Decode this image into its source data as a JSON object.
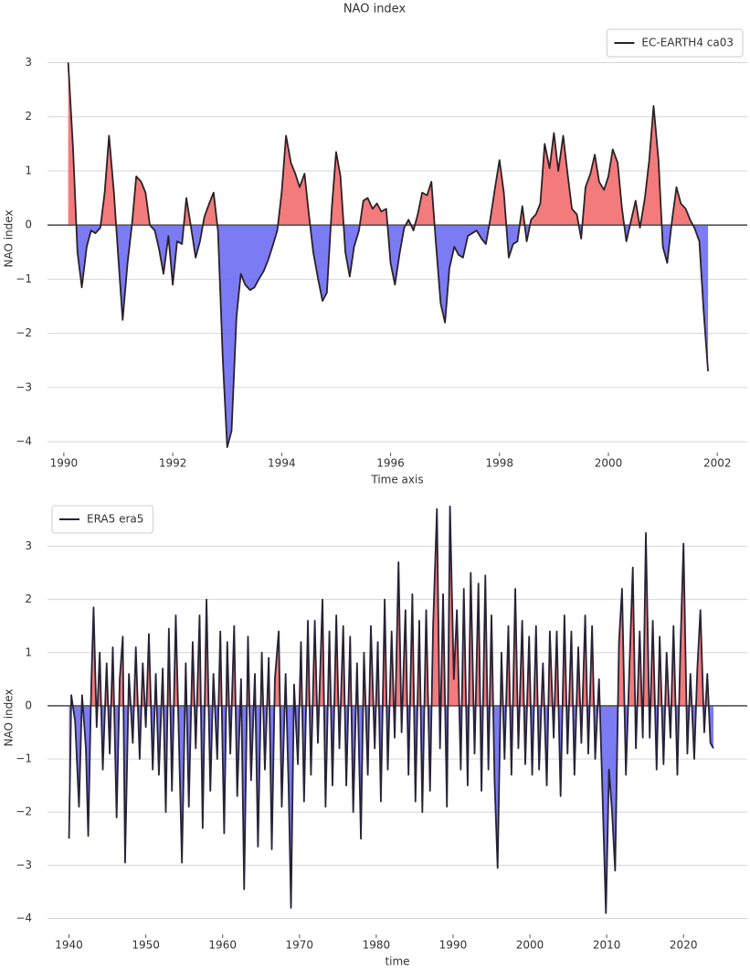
{
  "chart_data": [
    {
      "type": "line",
      "title": "NAO index",
      "xlabel": "Time axis",
      "ylabel": "NAO index",
      "legend": "upper right",
      "grid": true,
      "fill_above_color": "#f26464",
      "fill_below_color": "#6464f2",
      "xlim": [
        1989.7,
        2002.55
      ],
      "ylim": [
        -4.2,
        3.7
      ],
      "xticks": [
        1990,
        1992,
        1994,
        1996,
        1998,
        2000,
        2002
      ],
      "yticks": [
        {
          "value": -4,
          "label": "−4"
        },
        {
          "value": -3,
          "label": "−3"
        },
        {
          "value": -2,
          "label": "−2"
        },
        {
          "value": -1,
          "label": "−1"
        },
        0,
        1,
        2,
        3
      ],
      "x": [
        1990.08,
        1990.17,
        1990.25,
        1990.33,
        1990.42,
        1990.5,
        1990.58,
        1990.67,
        1990.75,
        1990.83,
        1990.92,
        1991,
        1991.08,
        1991.17,
        1991.25,
        1991.33,
        1991.42,
        1991.5,
        1991.58,
        1991.67,
        1991.75,
        1991.83,
        1991.92,
        1992,
        1992.08,
        1992.17,
        1992.25,
        1992.33,
        1992.42,
        1992.5,
        1992.58,
        1992.67,
        1992.75,
        1992.83,
        1992.92,
        1993,
        1993.08,
        1993.17,
        1993.25,
        1993.33,
        1993.42,
        1993.5,
        1993.58,
        1993.67,
        1993.75,
        1993.83,
        1993.92,
        1994,
        1994.08,
        1994.17,
        1994.25,
        1994.33,
        1994.42,
        1994.5,
        1994.58,
        1994.67,
        1994.75,
        1994.83,
        1994.92,
        1995,
        1995.08,
        1995.17,
        1995.25,
        1995.33,
        1995.42,
        1995.5,
        1995.58,
        1995.67,
        1995.75,
        1995.83,
        1995.92,
        1996,
        1996.08,
        1996.17,
        1996.25,
        1996.33,
        1996.42,
        1996.5,
        1996.58,
        1996.67,
        1996.75,
        1996.83,
        1996.92,
        1997,
        1997.08,
        1997.17,
        1997.25,
        1997.33,
        1997.42,
        1997.5,
        1997.58,
        1997.67,
        1997.75,
        1997.83,
        1997.92,
        1998,
        1998.08,
        1998.17,
        1998.25,
        1998.33,
        1998.42,
        1998.5,
        1998.58,
        1998.67,
        1998.75,
        1998.83,
        1998.92,
        1999,
        1999.08,
        1999.17,
        1999.25,
        1999.33,
        1999.42,
        1999.5,
        1999.58,
        1999.67,
        1999.75,
        1999.83,
        1999.92,
        2000,
        2000.08,
        2000.17,
        2000.25,
        2000.33,
        2000.42,
        2000.5,
        2000.58,
        2000.67,
        2000.75,
        2000.83,
        2000.92,
        2001,
        2001.08,
        2001.17,
        2001.25,
        2001.33,
        2001.42,
        2001.5,
        2001.58,
        2001.67,
        2001.75,
        2001.83
      ],
      "series": [
        {
          "name": "EC-EARTH4 ca03",
          "color": "#2b2126",
          "values": [
            3.0,
            1.4,
            -0.5,
            -1.15,
            -0.4,
            -0.1,
            -0.15,
            -0.05,
            0.6,
            1.65,
            0.6,
            -0.6,
            -1.75,
            -0.7,
            0.0,
            0.9,
            0.8,
            0.6,
            0.0,
            -0.1,
            -0.45,
            -0.9,
            -0.2,
            -1.1,
            -0.3,
            -0.35,
            0.5,
            0.0,
            -0.6,
            -0.3,
            0.15,
            0.4,
            0.6,
            -0.1,
            -2.5,
            -4.1,
            -3.8,
            -1.7,
            -0.9,
            -1.1,
            -1.2,
            -1.15,
            -1.0,
            -0.85,
            -0.65,
            -0.4,
            -0.1,
            0.6,
            1.65,
            1.15,
            0.95,
            0.7,
            0.95,
            0.2,
            -0.5,
            -1.0,
            -1.4,
            -1.25,
            0.3,
            1.35,
            0.9,
            -0.5,
            -0.95,
            -0.4,
            -0.1,
            0.45,
            0.5,
            0.3,
            0.4,
            0.25,
            0.3,
            -0.7,
            -1.1,
            -0.5,
            -0.05,
            0.1,
            -0.1,
            0.2,
            0.6,
            0.55,
            0.8,
            -0.3,
            -1.45,
            -1.8,
            -0.8,
            -0.4,
            -0.55,
            -0.6,
            -0.2,
            -0.15,
            -0.1,
            -0.25,
            -0.35,
            0.1,
            0.7,
            1.2,
            0.6,
            -0.6,
            -0.35,
            -0.3,
            0.35,
            -0.3,
            0.1,
            0.2,
            0.4,
            1.5,
            1.05,
            1.7,
            1.0,
            1.65,
            0.95,
            0.3,
            0.2,
            -0.25,
            0.7,
            0.95,
            1.3,
            0.8,
            0.65,
            0.9,
            1.4,
            1.15,
            0.3,
            -0.3,
            0.1,
            0.45,
            -0.05,
            0.5,
            1.2,
            2.2,
            1.2,
            -0.4,
            -0.7,
            0.1,
            0.7,
            0.4,
            0.3,
            0.1,
            -0.05,
            -0.3,
            -1.6,
            -2.7
          ]
        }
      ]
    },
    {
      "type": "line",
      "xlabel": "time",
      "ylabel": "NAO index",
      "legend": "upper left",
      "grid": true,
      "fill_above_color": "#f26464",
      "fill_below_color": "#6464f2",
      "xlim": [
        1937.2,
        2028.3
      ],
      "ylim": [
        -4.3,
        3.85
      ],
      "xticks": [
        1940,
        1950,
        1960,
        1970,
        1980,
        1990,
        2000,
        2010,
        2020
      ],
      "yticks": [
        {
          "value": -4,
          "label": "−4"
        },
        {
          "value": -3,
          "label": "−3"
        },
        {
          "value": -2,
          "label": "−2"
        },
        {
          "value": -1,
          "label": "−1"
        },
        0,
        1,
        2,
        3
      ],
      "x": [
        1940.0,
        1940.3,
        1940.8,
        1941.3,
        1941.7,
        1942.2,
        1942.5,
        1942.9,
        1943.2,
        1943.6,
        1944.0,
        1944.4,
        1944.9,
        1945.3,
        1945.7,
        1946.2,
        1946.6,
        1947.0,
        1947.3,
        1947.8,
        1948.3,
        1948.7,
        1949.2,
        1949.6,
        1950.0,
        1950.4,
        1950.9,
        1951.3,
        1951.7,
        1952.2,
        1952.6,
        1953.0,
        1953.4,
        1953.9,
        1954.3,
        1954.7,
        1955.2,
        1955.6,
        1956.1,
        1956.5,
        1957.0,
        1957.4,
        1957.9,
        1958.4,
        1958.8,
        1959.3,
        1959.7,
        1960.2,
        1960.6,
        1961.0,
        1961.5,
        1961.9,
        1962.4,
        1962.8,
        1963.3,
        1963.7,
        1964.2,
        1964.6,
        1965.1,
        1965.5,
        1966.0,
        1966.4,
        1966.8,
        1967.3,
        1967.7,
        1968.2,
        1968.6,
        1968.9,
        1969.3,
        1969.8,
        1970.2,
        1970.6,
        1971.1,
        1971.5,
        1972.0,
        1972.4,
        1973.0,
        1973.4,
        1973.9,
        1974.3,
        1974.8,
        1975.2,
        1975.7,
        1976.1,
        1976.6,
        1977.0,
        1977.5,
        1978.0,
        1978.4,
        1978.9,
        1979.3,
        1979.8,
        1980.2,
        1980.6,
        1981.1,
        1981.5,
        1982.0,
        1982.4,
        1982.9,
        1983.3,
        1983.8,
        1984.2,
        1984.7,
        1985.1,
        1985.6,
        1986.0,
        1986.5,
        1987.0,
        1987.4,
        1987.9,
        1988.3,
        1988.7,
        1989.2,
        1989.6,
        1990.1,
        1990.5,
        1991.0,
        1991.4,
        1991.9,
        1992.3,
        1992.8,
        1993.3,
        1993.7,
        1994.2,
        1994.6,
        1995.0,
        1995.4,
        1995.8,
        1996.3,
        1996.7,
        1997.2,
        1997.6,
        1998.1,
        1998.5,
        1999.0,
        1999.4,
        1999.9,
        2000.3,
        2000.8,
        2001.2,
        2001.7,
        2002.2,
        2002.6,
        2003.1,
        2003.5,
        2004.0,
        2004.5,
        2004.9,
        2005.4,
        2005.8,
        2006.3,
        2006.7,
        2007.2,
        2007.6,
        2008.1,
        2008.5,
        2009.0,
        2009.4,
        2009.9,
        2010.3,
        2010.7,
        2011.1,
        2011.6,
        2012.0,
        2012.5,
        2013.0,
        2013.4,
        2013.8,
        2014.3,
        2014.7,
        2015.1,
        2015.6,
        2016.0,
        2016.5,
        2016.9,
        2017.4,
        2017.8,
        2018.3,
        2018.7,
        2019.2,
        2019.6,
        2020.0,
        2020.5,
        2020.9,
        2021.4,
        2021.8,
        2022.2,
        2022.7,
        2023.1,
        2023.5,
        2023.9
      ],
      "series": [
        {
          "name": "ERA5 era5",
          "color": "#272236",
          "values": [
            -2.5,
            0.2,
            -0.3,
            -1.9,
            0.2,
            -0.8,
            -2.45,
            0.4,
            1.85,
            -0.4,
            1.0,
            -1.2,
            0.8,
            -0.9,
            1.1,
            -2.1,
            0.5,
            1.3,
            -2.95,
            0.6,
            -0.7,
            1.1,
            -1.0,
            0.8,
            -0.4,
            1.35,
            -1.2,
            0.6,
            -1.3,
            0.7,
            -2.0,
            1.45,
            -1.6,
            1.7,
            -0.6,
            -2.95,
            0.8,
            -1.9,
            1.2,
            -0.8,
            1.7,
            -2.3,
            2.0,
            -1.6,
            0.6,
            -1.0,
            1.4,
            -2.4,
            1.2,
            -0.9,
            1.5,
            -1.7,
            0.5,
            -3.45,
            1.3,
            -1.4,
            0.6,
            -2.65,
            1.0,
            -1.2,
            0.9,
            -2.7,
            0.5,
            1.4,
            -1.9,
            0.6,
            -1.6,
            -3.8,
            0.4,
            -1.1,
            1.2,
            -1.8,
            1.6,
            -1.3,
            1.6,
            -0.7,
            2.0,
            -1.9,
            1.4,
            -1.5,
            1.7,
            -0.8,
            1.5,
            -1.5,
            1.3,
            -2.0,
            0.8,
            -2.5,
            1.0,
            -1.3,
            1.5,
            -0.8,
            1.2,
            -1.8,
            2.0,
            -1.2,
            1.4,
            -0.6,
            2.7,
            -0.5,
            1.8,
            -1.3,
            2.1,
            -1.8,
            1.6,
            -2.0,
            1.8,
            -1.6,
            1.5,
            3.7,
            -0.8,
            2.1,
            -1.9,
            3.75,
            0.5,
            1.8,
            -1.2,
            2.2,
            -1.5,
            2.5,
            -0.9,
            2.3,
            -1.6,
            2.45,
            -1.2,
            1.7,
            -1.4,
            -3.05,
            1.0,
            -1.0,
            1.5,
            -1.3,
            2.2,
            -0.8,
            1.6,
            -1.1,
            1.3,
            -1.3,
            1.5,
            -1.2,
            0.8,
            -1.5,
            1.4,
            -0.6,
            1.4,
            -1.7,
            1.7,
            -0.9,
            1.4,
            -1.3,
            1.1,
            -0.7,
            1.7,
            -0.9,
            1.5,
            -1.0,
            0.5,
            -1.4,
            -3.9,
            -1.2,
            -2.0,
            -3.1,
            1.2,
            2.2,
            -1.3,
            0.9,
            2.6,
            -0.8,
            1.4,
            -0.6,
            3.25,
            -0.6,
            1.6,
            -1.2,
            1.3,
            -1.1,
            1.0,
            -0.6,
            1.5,
            -1.3,
            1.1,
            3.05,
            -0.9,
            0.6,
            -1.0,
            0.7,
            1.8,
            -0.5,
            0.6,
            -0.7,
            -0.8
          ]
        }
      ]
    }
  ]
}
